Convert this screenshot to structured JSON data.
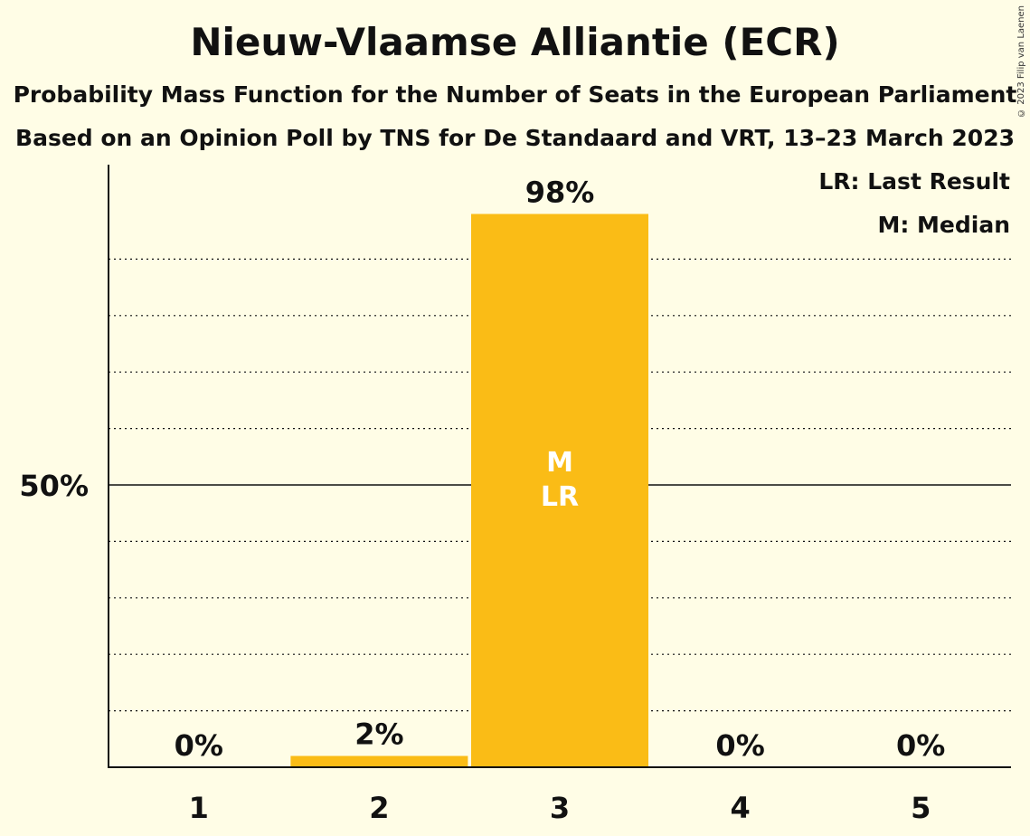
{
  "title": "Nieuw-Vlaamse Alliantie (ECR)",
  "subtitle1": "Probability Mass Function for the Number of Seats in the European Parliament",
  "subtitle2": "Based on an Opinion Poll by TNS for De Standaard and VRT, 13–23 March 2023",
  "copyright": "© 2023 Filip van Laenen",
  "legend": {
    "last_result": "LR: Last Result",
    "median": "M: Median"
  },
  "colors": {
    "bar": "#FABC16",
    "background": "#FFFDE6"
  },
  "chart_data": {
    "type": "bar",
    "categories": [
      "1",
      "2",
      "3",
      "4",
      "5"
    ],
    "values": [
      0,
      2,
      98,
      0,
      0
    ],
    "value_labels": [
      "0%",
      "2%",
      "98%",
      "0%",
      "0%"
    ],
    "ylim": [
      0,
      100
    ],
    "y_ticks": [
      {
        "value": 50,
        "label": "50%"
      }
    ],
    "minor_gridlines": [
      10,
      20,
      30,
      40,
      60,
      70,
      80,
      90
    ],
    "median_category": "3",
    "last_result_category": "3",
    "median_marker": "M",
    "last_result_marker": "LR"
  }
}
